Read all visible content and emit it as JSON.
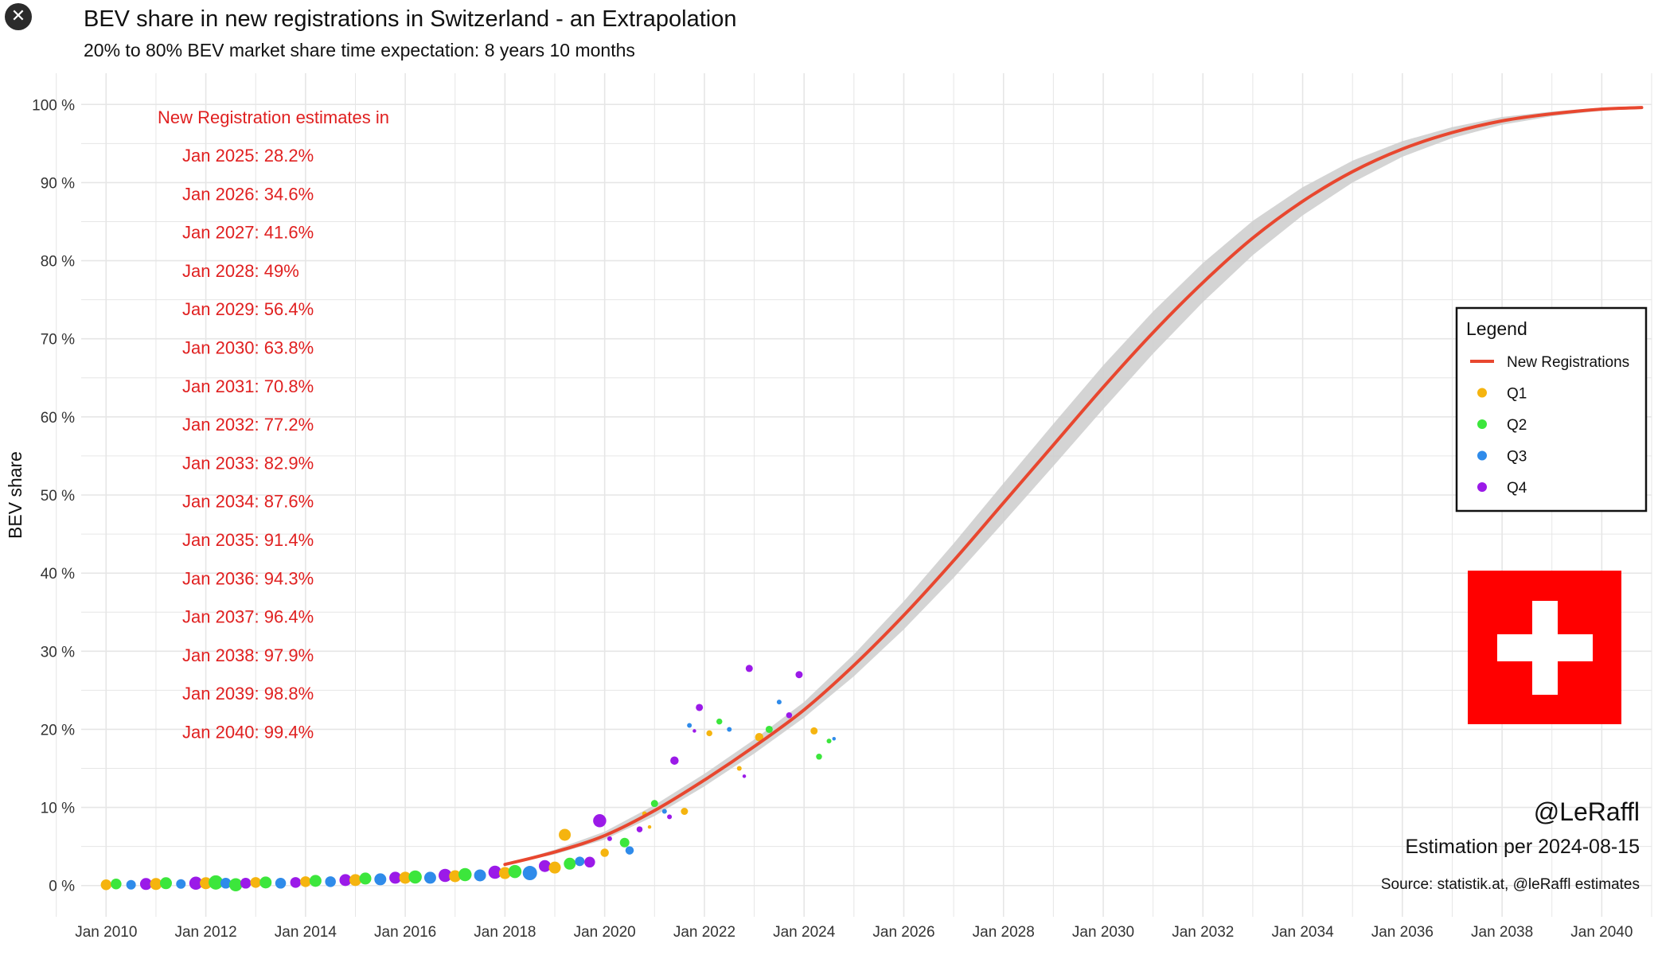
{
  "window": {
    "close_label": "✕",
    "close_icon": "close-icon"
  },
  "chart_data": {
    "type": "line",
    "title": "BEV share in new registrations in Switzerland - an Extrapolation",
    "subtitle": "20% to 80% BEV market share time expectation: 8 years 10 months",
    "ylabel": "BEV share",
    "xlabel": "",
    "xlim": [
      2009.5,
      2041.0
    ],
    "ylim": [
      -4,
      104
    ],
    "x_ticks": [
      2010,
      2012,
      2014,
      2016,
      2018,
      2020,
      2022,
      2024,
      2026,
      2028,
      2030,
      2032,
      2034,
      2036,
      2038,
      2040
    ],
    "x_tick_labels": [
      "Jan 2010",
      "Jan 2012",
      "Jan 2014",
      "Jan 2016",
      "Jan 2018",
      "Jan 2020",
      "Jan 2022",
      "Jan 2024",
      "Jan 2026",
      "Jan 2028",
      "Jan 2030",
      "Jan 2032",
      "Jan 2034",
      "Jan 2036",
      "Jan 2038",
      "Jan 2040"
    ],
    "y_ticks": [
      0,
      10,
      20,
      30,
      40,
      50,
      60,
      70,
      80,
      90,
      100
    ],
    "y_tick_labels": [
      "0 %",
      "10 %",
      "20 %",
      "30 %",
      "40 %",
      "50 %",
      "60 %",
      "70 %",
      "80 %",
      "90 %",
      "100 %"
    ],
    "grid": true,
    "series": [
      {
        "name": "New Registrations",
        "color": "#e8472f",
        "x": [
          2018.0,
          2019.0,
          2020.0,
          2021.0,
          2022.0,
          2023.0,
          2024.0,
          2025.0,
          2026.0,
          2027.0,
          2028.0,
          2029.0,
          2030.0,
          2031.0,
          2032.0,
          2033.0,
          2034.0,
          2035.0,
          2036.0,
          2037.0,
          2038.0,
          2039.0,
          2040.0,
          2040.8
        ],
        "y": [
          2.7,
          4.3,
          6.4,
          9.6,
          13.5,
          17.8,
          22.5,
          28.2,
          34.6,
          41.6,
          49.0,
          56.4,
          63.8,
          70.8,
          77.2,
          82.9,
          87.6,
          91.4,
          94.3,
          96.4,
          97.9,
          98.8,
          99.4,
          99.6
        ],
        "band_halfwidth": [
          0,
          0.3,
          0.5,
          0.7,
          0.8,
          0.9,
          1.0,
          1.4,
          1.8,
          2.2,
          2.5,
          2.7,
          2.8,
          2.7,
          2.5,
          2.2,
          1.8,
          1.4,
          1.0,
          0.7,
          0.5,
          0.3,
          0.2,
          0.1
        ]
      }
    ],
    "scatter": {
      "quarters": [
        {
          "name": "Q1",
          "color": "#f5b40f"
        },
        {
          "name": "Q2",
          "color": "#3ce63c"
        },
        {
          "name": "Q3",
          "color": "#2f8bea"
        },
        {
          "name": "Q4",
          "color": "#9b1ae8"
        }
      ],
      "points": [
        [
          2010.0,
          0.1,
          0,
          9
        ],
        [
          2010.2,
          0.2,
          1,
          9
        ],
        [
          2010.5,
          0.1,
          2,
          8
        ],
        [
          2010.8,
          0.2,
          3,
          10
        ],
        [
          2011.0,
          0.2,
          0,
          10
        ],
        [
          2011.2,
          0.3,
          1,
          10
        ],
        [
          2011.5,
          0.2,
          2,
          8
        ],
        [
          2011.8,
          0.3,
          3,
          11
        ],
        [
          2012.0,
          0.3,
          0,
          10
        ],
        [
          2012.2,
          0.4,
          1,
          12
        ],
        [
          2012.4,
          0.3,
          2,
          9
        ],
        [
          2012.6,
          0.1,
          1,
          11
        ],
        [
          2012.8,
          0.3,
          3,
          9
        ],
        [
          2013.0,
          0.4,
          0,
          9
        ],
        [
          2013.2,
          0.4,
          1,
          10
        ],
        [
          2013.5,
          0.3,
          2,
          9
        ],
        [
          2013.8,
          0.4,
          3,
          9
        ],
        [
          2014.0,
          0.5,
          0,
          9
        ],
        [
          2014.2,
          0.6,
          1,
          10
        ],
        [
          2014.5,
          0.5,
          2,
          9
        ],
        [
          2014.8,
          0.7,
          3,
          10
        ],
        [
          2015.0,
          0.7,
          0,
          10
        ],
        [
          2015.2,
          0.9,
          1,
          10
        ],
        [
          2015.5,
          0.8,
          2,
          10
        ],
        [
          2015.8,
          1.0,
          3,
          10
        ],
        [
          2016.0,
          1.0,
          0,
          10
        ],
        [
          2016.2,
          1.1,
          1,
          11
        ],
        [
          2016.5,
          1.0,
          2,
          10
        ],
        [
          2016.8,
          1.3,
          3,
          11
        ],
        [
          2017.0,
          1.2,
          0,
          10
        ],
        [
          2017.2,
          1.4,
          1,
          11
        ],
        [
          2017.5,
          1.3,
          2,
          10
        ],
        [
          2017.8,
          1.7,
          3,
          11
        ],
        [
          2018.0,
          1.6,
          0,
          10
        ],
        [
          2018.2,
          1.8,
          1,
          11
        ],
        [
          2018.5,
          1.6,
          2,
          12
        ],
        [
          2018.8,
          2.5,
          3,
          10
        ],
        [
          2019.0,
          2.3,
          0,
          10
        ],
        [
          2019.2,
          6.5,
          0,
          10
        ],
        [
          2019.3,
          2.8,
          1,
          10
        ],
        [
          2019.5,
          3.1,
          2,
          8
        ],
        [
          2019.7,
          3.0,
          3,
          9
        ],
        [
          2019.9,
          8.3,
          3,
          11
        ],
        [
          2020.0,
          4.2,
          0,
          7
        ],
        [
          2020.1,
          6.0,
          3,
          4
        ],
        [
          2020.4,
          5.5,
          1,
          8
        ],
        [
          2020.5,
          4.5,
          2,
          7
        ],
        [
          2020.7,
          7.2,
          3,
          5
        ],
        [
          2020.8,
          9.2,
          0,
          4
        ],
        [
          2020.9,
          7.5,
          0,
          3
        ],
        [
          2021.0,
          10.5,
          1,
          6
        ],
        [
          2021.2,
          9.5,
          2,
          4
        ],
        [
          2021.3,
          8.8,
          3,
          4
        ],
        [
          2021.4,
          16.0,
          3,
          7
        ],
        [
          2021.6,
          9.5,
          0,
          6
        ],
        [
          2021.7,
          20.5,
          2,
          4
        ],
        [
          2021.8,
          19.8,
          3,
          3
        ],
        [
          2021.9,
          22.8,
          3,
          6
        ],
        [
          2022.1,
          19.5,
          0,
          5
        ],
        [
          2022.3,
          21.0,
          1,
          5
        ],
        [
          2022.5,
          20.0,
          2,
          4
        ],
        [
          2022.7,
          15.0,
          0,
          4
        ],
        [
          2022.8,
          14.0,
          3,
          3
        ],
        [
          2022.9,
          27.8,
          3,
          6
        ],
        [
          2023.1,
          19.0,
          0,
          7
        ],
        [
          2023.3,
          20.0,
          1,
          6
        ],
        [
          2023.5,
          23.5,
          2,
          4
        ],
        [
          2023.7,
          21.8,
          3,
          5
        ],
        [
          2023.9,
          27.0,
          3,
          6
        ],
        [
          2024.2,
          19.8,
          0,
          6
        ],
        [
          2024.3,
          16.5,
          1,
          5
        ],
        [
          2024.5,
          18.5,
          1,
          4
        ],
        [
          2024.6,
          18.8,
          2,
          3
        ]
      ]
    },
    "annotations": {
      "header": "New Registration estimates in",
      "lines": [
        "Jan 2025: 28.2%",
        "Jan 2026: 34.6%",
        "Jan 2027: 41.6%",
        "Jan 2028: 49%",
        "Jan 2029: 56.4%",
        "Jan 2030: 63.8%",
        "Jan 2031: 70.8%",
        "Jan 2032: 77.2%",
        "Jan 2033: 82.9%",
        "Jan 2034: 87.6%",
        "Jan 2035: 91.4%",
        "Jan 2036: 94.3%",
        "Jan 2037: 96.4%",
        "Jan 2038: 97.9%",
        "Jan 2039: 98.8%",
        "Jan 2040: 99.4%"
      ],
      "color": "#e02020"
    },
    "legend": {
      "title": "Legend",
      "placement": "right",
      "items": [
        {
          "label": "New Registrations",
          "kind": "line",
          "color": "#e8472f"
        },
        {
          "label": "Q1",
          "kind": "dot",
          "color": "#f5b40f"
        },
        {
          "label": "Q2",
          "kind": "dot",
          "color": "#3ce63c"
        },
        {
          "label": "Q3",
          "kind": "dot",
          "color": "#2f8bea"
        },
        {
          "label": "Q4",
          "kind": "dot",
          "color": "#9b1ae8"
        }
      ]
    },
    "flag": {
      "name": "swiss-flag",
      "color": "#ff0000",
      "cross_color": "#ffffff"
    },
    "credits": {
      "handle": "@LeRaffl",
      "estimation": "Estimation per 2024-08-15",
      "source": "Source: statistik.at, @leRaffl estimates"
    },
    "colors": {
      "grid": "#e6e6e6",
      "band": "#cccccc",
      "curve": "#e8472f"
    }
  }
}
